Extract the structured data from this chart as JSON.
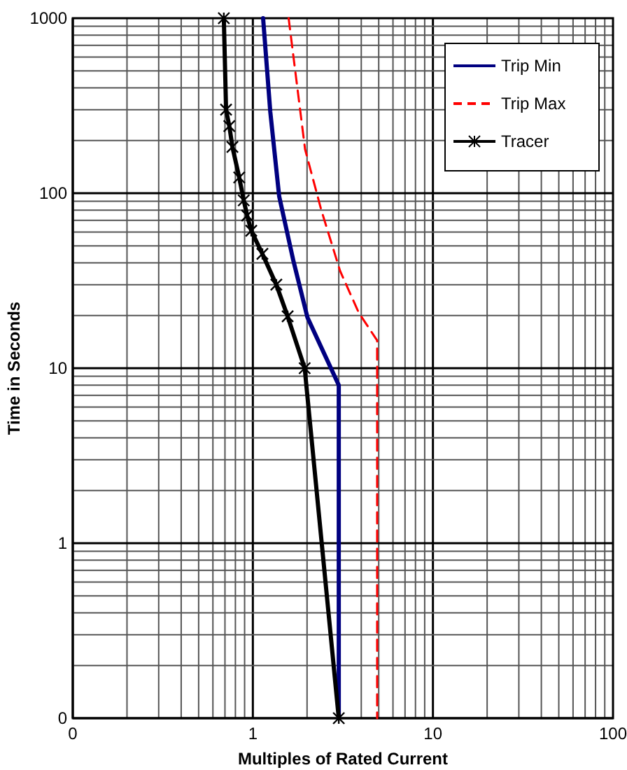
{
  "chart_data": {
    "type": "line",
    "xlabel": "Multiples of Rated Current",
    "ylabel": "Time in Seconds",
    "log": "xy",
    "grid": true,
    "legend": "top right",
    "xlim": [
      0.1,
      100
    ],
    "xticks": [
      {
        "value": 0.1,
        "label": "0"
      },
      1,
      10,
      100
    ],
    "ylim": [
      0.1,
      1000
    ],
    "yticks": [
      {
        "value": 0.1,
        "label": "0"
      },
      1,
      10,
      100,
      1000
    ],
    "series": [
      {
        "name": "Trip Min",
        "color": "#000080",
        "line_style": "solid",
        "marker": "none",
        "x": [
          1.14,
          1.25,
          1.4,
          1.68,
          2.01,
          3,
          3
        ],
        "values": [
          1000,
          291,
          96,
          41,
          19.5,
          8,
          0.1
        ]
      },
      {
        "name": "Trip Max",
        "color": "#ff0000",
        "line_style": "dashed",
        "marker": "none",
        "x": [
          1.58,
          1.95,
          2.4,
          3.05,
          3.87,
          4.9,
          4.9,
          4.9
        ],
        "values": [
          1000,
          178,
          80,
          36,
          20.8,
          14.4,
          10,
          0.1
        ]
      },
      {
        "name": "Tracer",
        "color": "#000000",
        "line_style": "solid",
        "marker": "cross",
        "x": [
          0.69,
          0.71,
          0.74,
          0.77,
          0.84,
          0.89,
          0.93,
          0.98,
          1.13,
          1.35,
          1.56,
          1.94,
          3
        ],
        "values": [
          1000,
          300,
          242,
          184,
          123,
          91,
          74.5,
          61,
          45,
          30,
          19.8,
          10,
          0.1
        ]
      }
    ]
  }
}
